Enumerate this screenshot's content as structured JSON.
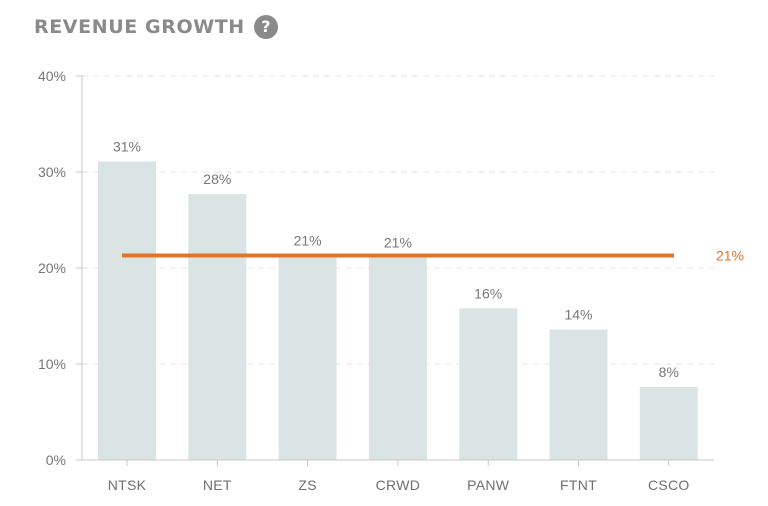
{
  "header": {
    "title": "REVENUE GROWTH",
    "help_glyph": "?",
    "help_icon": "question-circle-icon"
  },
  "colors": {
    "bar": "#dbe4e4",
    "reference_line": "#e0742a",
    "grid": "#e4e4e4",
    "axis": "#c9c9c9",
    "title": "#8a8a8a"
  },
  "chart_data": {
    "type": "bar",
    "title": "REVENUE GROWTH",
    "xlabel": "",
    "ylabel": "",
    "categories": [
      "NTSK",
      "NET",
      "ZS",
      "CRWD",
      "PANW",
      "FTNT",
      "CSCO"
    ],
    "values": [
      31.1,
      27.7,
      21.3,
      21.1,
      15.8,
      13.6,
      7.6
    ],
    "data_labels": [
      "31%",
      "28%",
      "21%",
      "21%",
      "16%",
      "14%",
      "8%"
    ],
    "ylim": [
      0,
      40
    ],
    "y_ticks": [
      0,
      10,
      20,
      30,
      40
    ],
    "y_tick_labels": [
      "0%",
      "10%",
      "20%",
      "30%",
      "40%"
    ],
    "grid": "horizontal dashed",
    "reference_line": {
      "value": 21.3,
      "label": "21%"
    }
  }
}
